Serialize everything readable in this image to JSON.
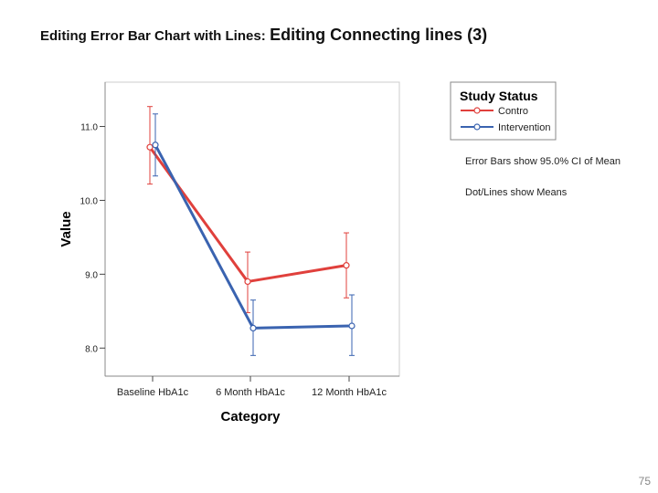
{
  "slide": {
    "title_main": "Editing Error Bar Chart with Lines:",
    "title_sub": "Editing Connecting lines (3)",
    "page_number": "75"
  },
  "chart_data": {
    "type": "line",
    "title": "",
    "xlabel": "Category",
    "ylabel": "Value",
    "categories": [
      "Baseline HbA1c",
      "6 Month HbA1c",
      "12 Month HbA1c"
    ],
    "yticks": [
      8.0,
      9.0,
      10.0,
      11.0
    ],
    "ytick_labels": [
      "8.0",
      "9.0",
      "10.0",
      "11.0"
    ],
    "ylim": [
      7.62,
      11.6
    ],
    "grid": false,
    "legend": {
      "title": "Study Status",
      "placement": "top-right, outside plot",
      "entries": [
        "Contro",
        "Intervention"
      ]
    },
    "notes": [
      "Error Bars show 95.0% CI of Mean",
      "Dot/Lines show Means"
    ],
    "series": [
      {
        "name": "Contro",
        "color": "#e0403c",
        "values": [
          10.72,
          8.9,
          9.12
        ],
        "ci_low": [
          10.22,
          8.48,
          8.68
        ],
        "ci_high": [
          11.27,
          9.3,
          9.56
        ]
      },
      {
        "name": "Intervention",
        "color": "#3a63b0",
        "values": [
          10.75,
          8.27,
          8.3
        ],
        "ci_low": [
          10.33,
          7.9,
          7.9
        ],
        "ci_high": [
          11.17,
          8.65,
          8.72
        ]
      }
    ]
  }
}
